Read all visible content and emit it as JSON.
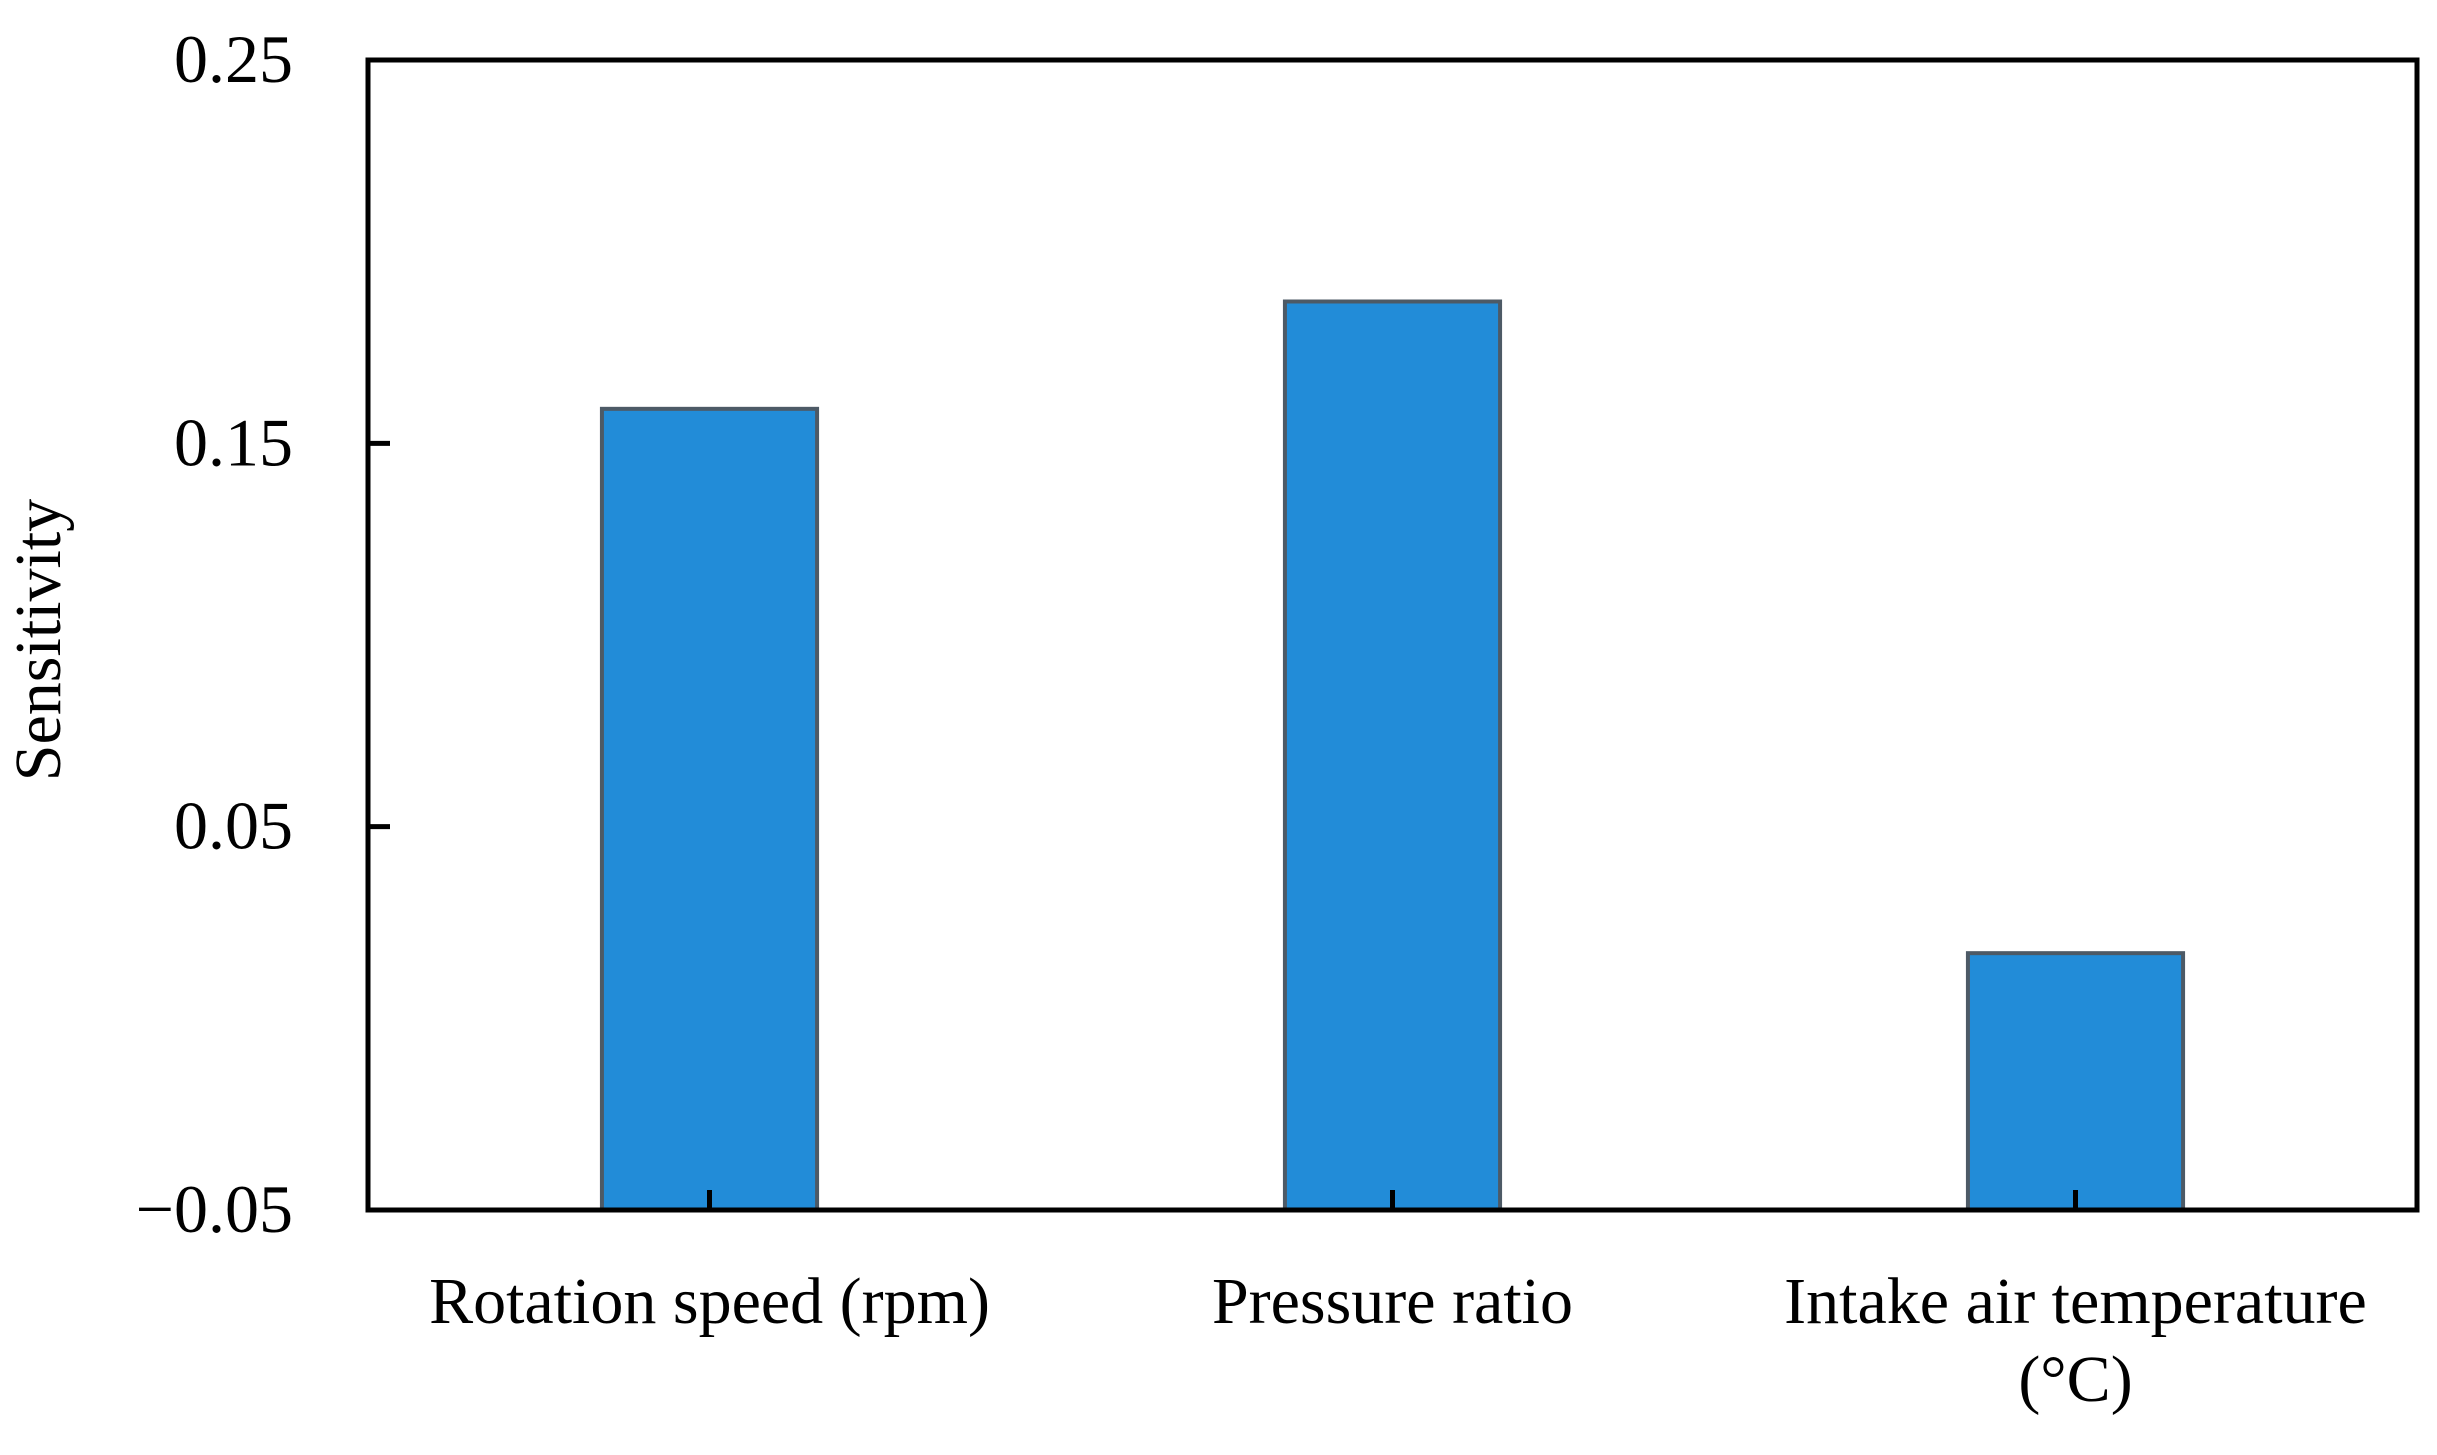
{
  "chart_data": {
    "type": "bar",
    "title": "",
    "xlabel": "",
    "ylabel": "Sensitivity",
    "ylim": [
      -0.05,
      0.25
    ],
    "yticks": [
      -0.05,
      0.05,
      0.15,
      0.25
    ],
    "ytick_labels": [
      "−0.05",
      "0.05",
      "0.15",
      "0.25"
    ],
    "categories": [
      "Rotation speed (rpm)",
      "Pressure ratio",
      "Intake air temperature (°C)"
    ],
    "category_label_lines": [
      [
        "Rotation speed (rpm)"
      ],
      [
        "Pressure ratio"
      ],
      [
        "Intake air temperature",
        "(°C)"
      ]
    ],
    "values": [
      0.159,
      0.187,
      0.017
    ],
    "grid": false,
    "legend": "none",
    "bar_color": "#228cd8",
    "bar_edge_color": "#4d5a66"
  }
}
